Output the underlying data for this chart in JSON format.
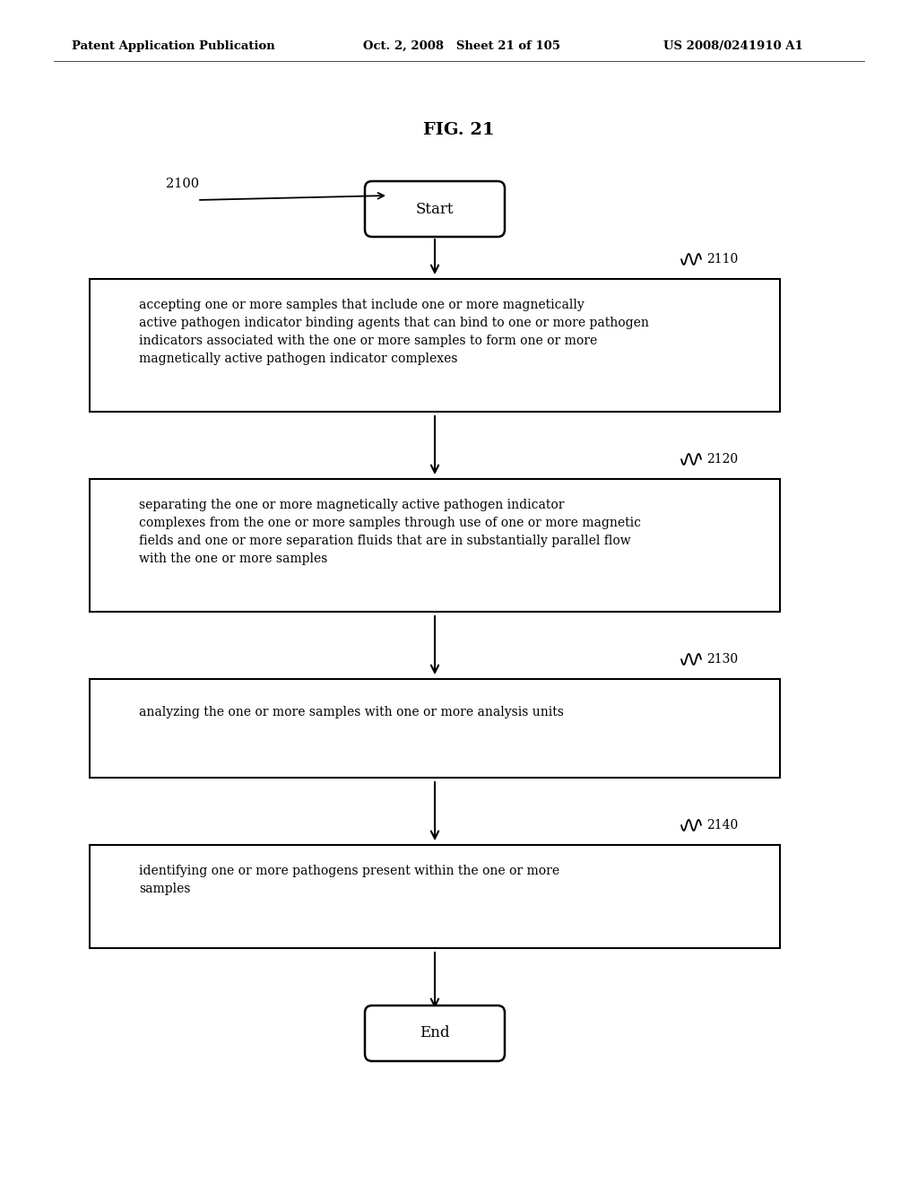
{
  "title": "FIG. 21",
  "header_left": "Patent Application Publication",
  "header_mid": "Oct. 2, 2008   Sheet 21 of 105",
  "header_right": "US 2008/0241910 A1",
  "fig_label": "2100",
  "start_label": "Start",
  "end_label": "End",
  "boxes": [
    {
      "id": "2110",
      "label": "2110",
      "text": "accepting one or more samples that include one or more magnetically\nactive pathogen indicator binding agents that can bind to one or more pathogen\nindicators associated with the one or more samples to form one or more\nmagnetically active pathogen indicator complexes"
    },
    {
      "id": "2120",
      "label": "2120",
      "text": "separating the one or more magnetically active pathogen indicator\ncomplexes from the one or more samples through use of one or more magnetic\nfields and one or more separation fluids that are in substantially parallel flow\nwith the one or more samples"
    },
    {
      "id": "2130",
      "label": "2130",
      "text": "analyzing the one or more samples with one or more analysis units"
    },
    {
      "id": "2140",
      "label": "2140",
      "text": "identifying one or more pathogens present within the one or more\nsamples"
    }
  ],
  "bg_color": "#ffffff",
  "text_color": "#000000",
  "box_edge_color": "#000000",
  "arrow_color": "#000000",
  "fig_width": 10.24,
  "fig_height": 13.2,
  "dpi": 100
}
